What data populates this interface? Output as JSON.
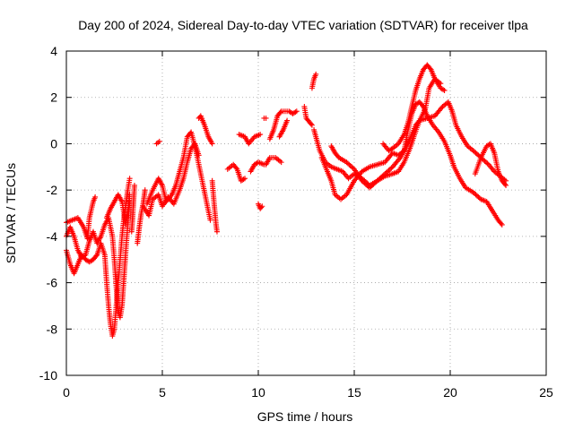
{
  "chart_data": {
    "type": "scatter",
    "title": "Day 200 of 2024, Sidereal Day-to-day VTEC variation (SDTVAR) for receiver tlpa",
    "xlabel": "GPS time / hours",
    "ylabel": "SDTVAR / TECUs",
    "xlim": [
      0,
      25
    ],
    "ylim": [
      -10,
      4
    ],
    "x_ticks": [
      0,
      5,
      10,
      15,
      20,
      25
    ],
    "x_tick_labels": [
      "0",
      "5",
      "10",
      "15",
      "20",
      "25"
    ],
    "y_ticks": [
      -10,
      -8,
      -6,
      -4,
      -2,
      0,
      2,
      4
    ],
    "y_tick_labels": [
      "-10",
      "-8",
      "-6",
      "-4",
      "-2",
      "0",
      "2",
      "4"
    ],
    "grid": true,
    "marker": "+",
    "series": [
      {
        "name": "SDTVAR",
        "color": "#ff0000",
        "tracks": [
          [
            [
              0.0,
              -3.4
            ],
            [
              0.3,
              -3.3
            ],
            [
              0.6,
              -3.2
            ],
            [
              0.9,
              -3.6
            ],
            [
              1.1,
              -4.1
            ],
            [
              1.2,
              -3.2
            ],
            [
              1.4,
              -2.5
            ],
            [
              1.5,
              -2.3
            ]
          ],
          [
            [
              0.0,
              -4.6
            ],
            [
              0.2,
              -5.2
            ],
            [
              0.4,
              -5.6
            ],
            [
              0.6,
              -5.2
            ],
            [
              0.8,
              -4.8
            ],
            [
              1.0,
              -5.0
            ],
            [
              1.2,
              -5.1
            ],
            [
              1.4,
              -5.0
            ],
            [
              1.6,
              -4.8
            ],
            [
              1.8,
              -4.3
            ],
            [
              2.0,
              -4.8
            ],
            [
              2.1,
              -6.0
            ],
            [
              2.2,
              -7.0
            ],
            [
              2.3,
              -7.8
            ],
            [
              2.4,
              -8.3
            ],
            [
              2.5,
              -8.0
            ],
            [
              2.6,
              -7.0
            ],
            [
              2.7,
              -6.0
            ],
            [
              2.8,
              -5.0
            ],
            [
              2.9,
              -4.0
            ],
            [
              3.0,
              -3.2
            ],
            [
              3.1,
              -2.6
            ],
            [
              3.2,
              -2.0
            ],
            [
              3.3,
              -1.5
            ]
          ],
          [
            [
              0.0,
              -4.0
            ],
            [
              0.2,
              -3.6
            ],
            [
              0.4,
              -4.0
            ],
            [
              0.6,
              -4.6
            ],
            [
              0.8,
              -4.9
            ],
            [
              1.0,
              -4.8
            ],
            [
              1.2,
              -4.2
            ],
            [
              1.4,
              -3.8
            ],
            [
              1.6,
              -4.3
            ],
            [
              1.8,
              -4.0
            ],
            [
              2.0,
              -3.5
            ],
            [
              2.2,
              -3.2
            ],
            [
              2.4,
              -4.0
            ],
            [
              2.5,
              -5.0
            ],
            [
              2.6,
              -6.2
            ],
            [
              2.7,
              -7.2
            ],
            [
              2.8,
              -7.5
            ],
            [
              2.9,
              -7.0
            ],
            [
              3.0,
              -5.8
            ],
            [
              3.1,
              -4.6
            ],
            [
              3.2,
              -3.5
            ],
            [
              3.3,
              -2.5
            ]
          ],
          [
            [
              2.1,
              -3.2
            ],
            [
              2.3,
              -2.8
            ],
            [
              2.5,
              -2.5
            ],
            [
              2.7,
              -2.2
            ],
            [
              2.9,
              -2.5
            ],
            [
              3.0,
              -3.0
            ],
            [
              3.1,
              -3.5
            ],
            [
              3.2,
              -3.0
            ],
            [
              3.3,
              -2.2
            ]
          ],
          [
            [
              3.4,
              -3.8
            ],
            [
              3.45,
              -3.2
            ],
            [
              3.5,
              -2.5
            ],
            [
              3.55,
              -1.8
            ]
          ],
          [
            [
              3.7,
              -4.3
            ],
            [
              3.8,
              -3.6
            ],
            [
              3.9,
              -3.0
            ],
            [
              4.0,
              -2.6
            ],
            [
              4.1,
              -2.0
            ]
          ],
          [
            [
              4.0,
              -2.7
            ],
            [
              4.3,
              -3.1
            ],
            [
              4.5,
              -2.4
            ],
            [
              4.8,
              -2.2
            ],
            [
              5.0,
              -2.7
            ],
            [
              5.3,
              -2.3
            ],
            [
              5.6,
              -2.6
            ],
            [
              5.9,
              -2.0
            ],
            [
              6.1,
              -1.5
            ],
            [
              6.3,
              -0.8
            ],
            [
              6.5,
              -0.2
            ],
            [
              6.7,
              0.0
            ],
            [
              6.9,
              -0.5
            ]
          ],
          [
            [
              4.2,
              -2.6
            ],
            [
              4.5,
              -2.0
            ],
            [
              4.8,
              -1.5
            ],
            [
              5.0,
              -1.8
            ],
            [
              5.2,
              -2.5
            ],
            [
              5.5,
              -2.2
            ],
            [
              5.7,
              -1.8
            ],
            [
              5.9,
              -1.2
            ],
            [
              6.1,
              -0.6
            ],
            [
              6.3,
              0.3
            ],
            [
              6.5,
              0.5
            ],
            [
              6.6,
              0.2
            ],
            [
              6.8,
              -0.5
            ],
            [
              7.0,
              -1.3
            ],
            [
              7.2,
              -2.1
            ],
            [
              7.4,
              -2.9
            ],
            [
              7.5,
              -3.3
            ]
          ],
          [
            [
              4.7,
              0.0
            ],
            [
              4.85,
              0.1
            ]
          ],
          [
            [
              6.9,
              1.1
            ],
            [
              7.0,
              1.2
            ],
            [
              7.2,
              0.8
            ],
            [
              7.4,
              0.3
            ],
            [
              7.6,
              0.0
            ]
          ],
          [
            [
              7.6,
              -1.6
            ],
            [
              7.7,
              -2.6
            ],
            [
              7.8,
              -3.5
            ],
            [
              7.85,
              -3.8
            ]
          ],
          [
            [
              8.4,
              -1.1
            ],
            [
              8.7,
              -0.9
            ],
            [
              8.9,
              -1.1
            ],
            [
              9.1,
              -1.6
            ],
            [
              9.3,
              -1.5
            ]
          ],
          [
            [
              9.0,
              0.4
            ],
            [
              9.3,
              0.3
            ],
            [
              9.5,
              0.0
            ],
            [
              9.8,
              0.3
            ],
            [
              10.1,
              0.4
            ]
          ],
          [
            [
              9.6,
              -1.2
            ],
            [
              9.8,
              -0.9
            ],
            [
              10.0,
              -0.8
            ],
            [
              10.3,
              -0.9
            ]
          ],
          [
            [
              10.0,
              -2.6
            ],
            [
              10.1,
              -2.8
            ],
            [
              10.2,
              -2.7
            ]
          ],
          [
            [
              10.4,
              -0.9
            ],
            [
              10.6,
              -0.6
            ],
            [
              10.9,
              -0.6
            ],
            [
              11.2,
              -0.8
            ]
          ],
          [
            [
              10.6,
              0.2
            ],
            [
              10.8,
              0.6
            ],
            [
              11.0,
              1.2
            ],
            [
              11.2,
              1.4
            ],
            [
              11.4,
              1.4
            ],
            [
              11.6,
              1.4
            ],
            [
              11.8,
              1.3
            ],
            [
              12.0,
              1.4
            ]
          ],
          [
            [
              11.1,
              0.3
            ],
            [
              11.3,
              0.6
            ],
            [
              11.5,
              1.0
            ]
          ],
          [
            [
              10.3,
              1.1
            ],
            [
              10.4,
              1.1
            ]
          ],
          [
            [
              12.4,
              1.6
            ],
            [
              12.5,
              1.1
            ],
            [
              12.7,
              0.9
            ],
            [
              12.8,
              0.8
            ]
          ],
          [
            [
              12.8,
              2.4
            ],
            [
              12.9,
              2.8
            ],
            [
              13.0,
              3.0
            ]
          ],
          [
            [
              12.9,
              0.6
            ],
            [
              13.0,
              0.3
            ],
            [
              13.2,
              -0.3
            ],
            [
              13.5,
              -0.8
            ],
            [
              13.8,
              -1.0
            ],
            [
              14.1,
              -1.1
            ],
            [
              14.4,
              -1.2
            ],
            [
              14.7,
              -1.5
            ],
            [
              15.0,
              -1.3
            ],
            [
              15.4,
              -1.5
            ],
            [
              15.8,
              -1.8
            ],
            [
              16.2,
              -1.6
            ],
            [
              16.6,
              -1.3
            ],
            [
              17.0,
              -1.0
            ],
            [
              17.4,
              -0.6
            ],
            [
              17.8,
              0.0
            ],
            [
              18.2,
              0.8
            ],
            [
              18.4,
              1.0
            ],
            [
              18.8,
              1.1
            ],
            [
              19.2,
              1.2
            ],
            [
              19.6,
              1.6
            ],
            [
              19.9,
              1.8
            ],
            [
              20.1,
              1.4
            ],
            [
              20.3,
              0.8
            ],
            [
              20.6,
              0.3
            ],
            [
              20.9,
              -0.1
            ],
            [
              21.2,
              -0.3
            ],
            [
              21.6,
              -0.6
            ],
            [
              22.0,
              -0.9
            ],
            [
              22.3,
              -1.2
            ],
            [
              22.6,
              -1.4
            ],
            [
              22.9,
              -1.6
            ]
          ],
          [
            [
              13.3,
              -0.6
            ],
            [
              13.6,
              -1.2
            ],
            [
              13.8,
              -1.6
            ],
            [
              14.0,
              -2.2
            ],
            [
              14.3,
              -2.4
            ],
            [
              14.6,
              -2.2
            ],
            [
              15.0,
              -1.6
            ],
            [
              15.4,
              -1.2
            ],
            [
              15.8,
              -1.0
            ],
            [
              16.2,
              -0.9
            ],
            [
              16.6,
              -0.8
            ],
            [
              17.0,
              -0.4
            ],
            [
              17.3,
              -0.5
            ],
            [
              17.6,
              -0.3
            ],
            [
              17.8,
              0.6
            ],
            [
              18.0,
              1.3
            ],
            [
              18.2,
              1.7
            ],
            [
              18.4,
              1.8
            ],
            [
              18.6,
              1.6
            ],
            [
              18.8,
              1.2
            ],
            [
              19.1,
              0.8
            ],
            [
              19.4,
              0.5
            ],
            [
              19.7,
              0.1
            ],
            [
              20.0,
              -0.5
            ],
            [
              20.2,
              -1.0
            ],
            [
              20.5,
              -1.5
            ],
            [
              20.8,
              -1.9
            ],
            [
              21.2,
              -2.1
            ],
            [
              21.6,
              -2.4
            ],
            [
              21.9,
              -2.5
            ],
            [
              22.2,
              -2.9
            ],
            [
              22.5,
              -3.3
            ],
            [
              22.7,
              -3.5
            ]
          ],
          [
            [
              13.8,
              -0.1
            ],
            [
              14.0,
              -0.4
            ],
            [
              14.2,
              -0.6
            ],
            [
              14.6,
              -0.8
            ],
            [
              15.0,
              -1.1
            ],
            [
              15.4,
              -1.6
            ],
            [
              15.8,
              -1.9
            ],
            [
              16.2,
              -1.6
            ],
            [
              16.6,
              -1.4
            ],
            [
              17.0,
              -1.3
            ],
            [
              17.3,
              -1.2
            ],
            [
              17.6,
              -0.8
            ],
            [
              17.9,
              -0.2
            ],
            [
              18.1,
              0.3
            ],
            [
              18.4,
              1.0
            ],
            [
              18.7,
              1.5
            ],
            [
              18.9,
              2.4
            ],
            [
              19.2,
              2.8
            ],
            [
              19.5,
              2.6
            ]
          ],
          [
            [
              16.5,
              0.0
            ],
            [
              16.8,
              -0.3
            ],
            [
              17.0,
              -0.2
            ],
            [
              17.3,
              0.0
            ],
            [
              17.6,
              0.4
            ],
            [
              17.8,
              0.9
            ],
            [
              18.0,
              1.6
            ],
            [
              18.2,
              2.3
            ],
            [
              18.4,
              2.8
            ],
            [
              18.6,
              3.2
            ],
            [
              18.8,
              3.4
            ],
            [
              19.0,
              3.2
            ],
            [
              19.2,
              2.8
            ],
            [
              19.5,
              2.4
            ],
            [
              19.7,
              2.3
            ]
          ],
          [
            [
              21.3,
              -1.3
            ],
            [
              21.6,
              -0.6
            ],
            [
              21.9,
              -0.1
            ],
            [
              22.1,
              0.0
            ],
            [
              22.3,
              -0.4
            ],
            [
              22.5,
              -1.2
            ],
            [
              22.7,
              -1.6
            ],
            [
              22.9,
              -1.8
            ]
          ]
        ]
      }
    ]
  }
}
